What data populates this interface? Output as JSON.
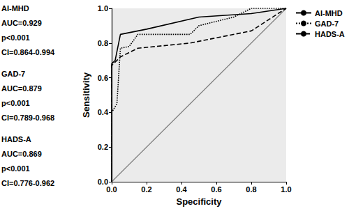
{
  "chart_data": {
    "type": "line",
    "x_label": "Specificity",
    "y_label": "Sensitivity",
    "xlim": [
      0,
      1
    ],
    "ylim": [
      0,
      1
    ],
    "xticks": [
      {
        "value": 0,
        "label": "0.0"
      },
      {
        "value": 0.2,
        "label": "0.2"
      },
      {
        "value": 0.4,
        "label": "0.4"
      },
      {
        "value": 0.6,
        "label": "0.6"
      },
      {
        "value": 0.8,
        "label": "0.8"
      },
      {
        "value": 1,
        "label": "1.0"
      }
    ],
    "yticks": [
      {
        "value": 0,
        "label": "0.0"
      },
      {
        "value": 0.2,
        "label": "0.2"
      },
      {
        "value": 0.4,
        "label": "0.4"
      },
      {
        "value": 0.6,
        "label": "0.6"
      },
      {
        "value": 0.8,
        "label": "0.8"
      },
      {
        "value": 1,
        "label": "1.0"
      }
    ],
    "grid": false,
    "legend": "top-right",
    "annotations": [
      [
        "AI-MHD",
        "AUC=0.929",
        "p<0.001",
        "CI=0.864-0.994"
      ],
      [
        "GAD-7",
        "AUC=0.879",
        "p<0.001",
        "CI=0.789-0.968"
      ],
      [
        "HADS-A",
        "AUC=0.869",
        "p<0.001",
        "CI=0.776-0.962"
      ]
    ],
    "series": [
      {
        "name": "AI-MHD",
        "color": "#000000",
        "line_style": "solid",
        "x": [
          0,
          0,
          0.02,
          0.05,
          0.2,
          0.5,
          0.8,
          1
        ],
        "values": [
          0,
          0.68,
          0.7,
          0.85,
          0.88,
          0.95,
          0.97,
          1
        ]
      },
      {
        "name": "GAD-7",
        "color": "#000000",
        "line_style": "dotted",
        "x": [
          0,
          0,
          0.03,
          0.05,
          0.1,
          0.15,
          0.45,
          0.5,
          0.7,
          0.8,
          1
        ],
        "values": [
          0,
          0.4,
          0.45,
          0.77,
          0.78,
          0.85,
          0.85,
          0.9,
          0.95,
          1,
          1
        ]
      },
      {
        "name": "HADS-A",
        "color": "#000000",
        "line_style": "dashed",
        "x": [
          0,
          0,
          0.05,
          0.15,
          0.45,
          0.6,
          0.8,
          1
        ],
        "values": [
          0,
          0.67,
          0.72,
          0.77,
          0.8,
          0.83,
          0.87,
          1
        ]
      },
      {
        "color": "#808080",
        "line_style": "solid",
        "x": [
          0,
          1
        ],
        "values": [
          0,
          1
        ]
      }
    ]
  }
}
